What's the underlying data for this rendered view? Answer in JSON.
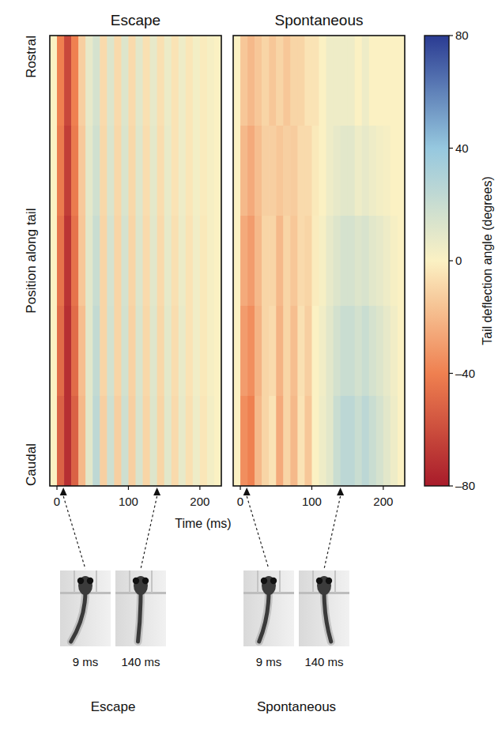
{
  "chart_data": [
    {
      "type": "heatmap",
      "title": "Escape",
      "xlabel": "Time (ms)",
      "ylabel": "Position along tail",
      "y_end_labels": [
        "Rostral",
        "Caudal"
      ],
      "xlim": [
        -10,
        230
      ],
      "xticks": [
        0,
        100,
        200
      ],
      "time_bins": [
        -10,
        0,
        10,
        20,
        30,
        40,
        50,
        60,
        70,
        80,
        90,
        100,
        110,
        120,
        130,
        140,
        150,
        160,
        170,
        180,
        190,
        200,
        210,
        220,
        230
      ],
      "position_bins": [
        0,
        0.2,
        0.4,
        0.6,
        0.8,
        1
      ],
      "cells": [
        [
          0,
          -40,
          -62,
          -40,
          -12,
          8,
          15,
          -8,
          12,
          -8,
          12,
          -8,
          10,
          -6,
          8,
          -6,
          6,
          -5,
          5,
          -4,
          3,
          -2,
          2,
          0
        ],
        [
          0,
          -42,
          -66,
          -42,
          -14,
          9,
          17,
          -9,
          13,
          -9,
          13,
          -9,
          11,
          -7,
          9,
          -7,
          7,
          -5,
          5,
          -4,
          3,
          -2,
          2,
          0
        ],
        [
          0,
          -45,
          -70,
          -45,
          -15,
          10,
          20,
          -10,
          15,
          -10,
          15,
          -10,
          12,
          -8,
          10,
          -8,
          8,
          -6,
          6,
          -5,
          4,
          -3,
          2,
          0
        ],
        [
          0,
          -48,
          -72,
          -48,
          -18,
          10,
          22,
          -10,
          16,
          -10,
          16,
          -11,
          13,
          -9,
          11,
          -9,
          9,
          -7,
          7,
          -5,
          4,
          -3,
          2,
          0
        ],
        [
          0,
          -52,
          -72,
          -52,
          -20,
          10,
          24,
          -12,
          18,
          -12,
          18,
          -12,
          14,
          -10,
          12,
          -10,
          10,
          -8,
          8,
          -6,
          5,
          -4,
          3,
          0
        ]
      ],
      "snapshots": [
        {
          "time": 9,
          "label": "9 ms"
        },
        {
          "time": 140,
          "label": "140 ms"
        }
      ],
      "caption": "Escape"
    },
    {
      "type": "heatmap",
      "title": "Spontaneous",
      "xlim": [
        -10,
        230
      ],
      "xticks": [
        0,
        100,
        200
      ],
      "time_bins": [
        -10,
        0,
        10,
        20,
        30,
        40,
        50,
        60,
        70,
        80,
        90,
        100,
        110,
        120,
        130,
        140,
        150,
        160,
        170,
        180,
        190,
        200,
        210,
        220,
        230
      ],
      "position_bins": [
        0,
        0.2,
        0.4,
        0.6,
        0.8,
        1
      ],
      "cells": [
        [
          0,
          -15,
          -20,
          -15,
          -10,
          -15,
          -10,
          -15,
          -10,
          -10,
          -5,
          -5,
          0,
          5,
          5,
          5,
          5,
          0,
          5,
          0,
          0,
          0,
          0,
          0
        ],
        [
          0,
          -20,
          -25,
          -18,
          -12,
          -12,
          -15,
          -12,
          -13,
          -8,
          -8,
          -3,
          0,
          5,
          8,
          10,
          10,
          5,
          8,
          5,
          3,
          2,
          0,
          0
        ],
        [
          0,
          -25,
          -30,
          -20,
          -10,
          -10,
          -20,
          -10,
          -15,
          -8,
          -10,
          -2,
          2,
          8,
          12,
          15,
          15,
          12,
          14,
          10,
          8,
          5,
          2,
          0
        ],
        [
          0,
          -30,
          -35,
          -22,
          -10,
          -8,
          -22,
          -10,
          -18,
          -6,
          -12,
          0,
          4,
          10,
          16,
          20,
          20,
          16,
          20,
          15,
          12,
          8,
          4,
          0
        ],
        [
          0,
          -35,
          -40,
          -20,
          -10,
          -5,
          -25,
          -10,
          -20,
          -5,
          -15,
          0,
          5,
          10,
          20,
          25,
          25,
          20,
          25,
          20,
          15,
          10,
          5,
          0
        ]
      ],
      "snapshots": [
        {
          "time": 9,
          "label": "9 ms"
        },
        {
          "time": 140,
          "label": "140 ms"
        }
      ],
      "caption": "Spontaneous"
    }
  ],
  "colorbar": {
    "label": "Tail deflection angle (degrees)",
    "range": [
      -80,
      80
    ],
    "ticks": [
      {
        "value": -80,
        "label": "–80"
      },
      {
        "value": -40,
        "label": "–40"
      },
      0,
      40,
      80
    ]
  }
}
